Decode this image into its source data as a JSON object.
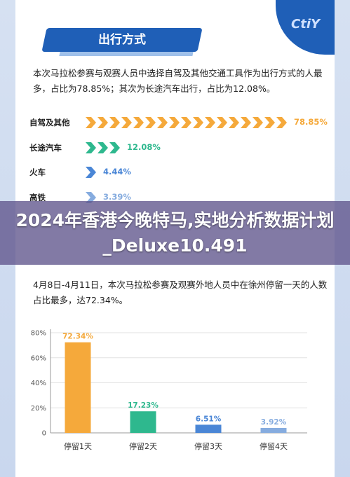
{
  "logo_text": "CtiY",
  "section_title": "出行方式",
  "paragraph1": "本次马拉松参赛与观赛人员中选择自驾及其他交通工具作为出行方式的人最多，占比为78.85%；其次为长途汽车出行，占比为12.08%。",
  "banner_title": "2024年香港今晚特马,实地分析数据计划_Deluxe10.491",
  "paragraph2": "4月8日-4月11日，本次马拉松参赛及观赛外地人员中在徐州停留一天的人数占比最多，达72.34%。",
  "colors": {
    "blue": "#1f5fb7",
    "orange": "#f5a93b",
    "green": "#2eb88e",
    "mid_blue": "#4a86d6",
    "light_blue": "#86acdf"
  },
  "chart_data": [
    {
      "type": "bar",
      "orientation": "horizontal",
      "categories": [
        "自驾及其他",
        "长途汽车",
        "火车",
        "高铁"
      ],
      "values": [
        78.85,
        12.08,
        4.44,
        3.39
      ],
      "value_labels": [
        "78.85%",
        "12.08%",
        "4.44%",
        "3.39%"
      ],
      "colors": [
        "#f5a93b",
        "#2eb88e",
        "#4a86d6",
        "#86acdf"
      ],
      "marker": "chevron"
    },
    {
      "type": "bar",
      "categories": [
        "停留1天",
        "停留2天",
        "停留3天",
        "停留4天"
      ],
      "values": [
        72.34,
        17.23,
        6.51,
        3.92
      ],
      "value_labels": [
        "72.34%",
        "17.23%",
        "6.51%",
        "3.92%"
      ],
      "colors": [
        "#f5a93b",
        "#2eb88e",
        "#4a86d6",
        "#86acdf"
      ],
      "yticks": [
        "0",
        "20%",
        "40%",
        "60%",
        "80%"
      ],
      "ylim": [
        0,
        80
      ],
      "grid": true
    }
  ]
}
